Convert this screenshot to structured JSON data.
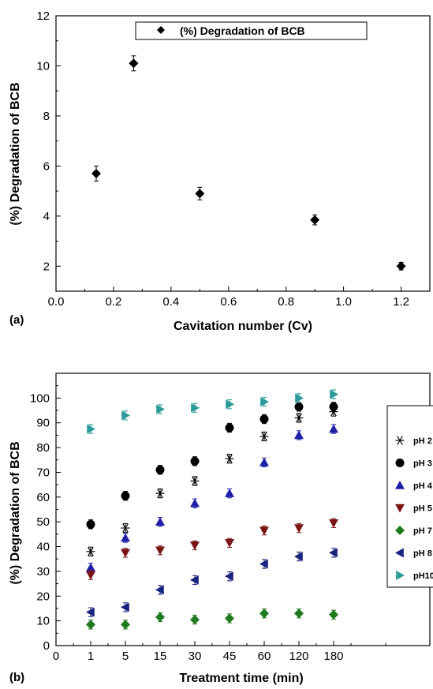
{
  "chart_data": [
    {
      "type": "scatter",
      "panel_label": "(a)",
      "xlabel": "Cavitation number (Cv)",
      "ylabel": "(%) Degradation of BCB",
      "xlim": [
        0.0,
        1.3
      ],
      "ylim": [
        1,
        12
      ],
      "xticks": [
        "0.0",
        "0.2",
        "0.4",
        "0.6",
        "0.8",
        "1.0",
        "1.2"
      ],
      "yticks": [
        "2",
        "4",
        "6",
        "8",
        "10",
        "12"
      ],
      "legend_position": "top-center",
      "series": [
        {
          "name": "(%) Degradation of BCB",
          "marker": "diamond",
          "color": "#000000",
          "x": [
            0.14,
            0.27,
            0.5,
            0.9,
            1.2
          ],
          "y": [
            5.7,
            10.1,
            4.9,
            3.85,
            2.0
          ],
          "err": [
            0.3,
            0.3,
            0.25,
            0.2,
            0.15
          ]
        }
      ]
    },
    {
      "type": "scatter",
      "panel_label": "(b)",
      "xlabel": "Treatment  time (min)",
      "ylabel": "(%) Degradation of BCB",
      "categories": [
        "0",
        "1",
        "5",
        "15",
        "30",
        "45",
        "60",
        "120",
        "180"
      ],
      "ylim": [
        0,
        110
      ],
      "yticks": [
        "0",
        "10",
        "20",
        "30",
        "40",
        "50",
        "60",
        "70",
        "80",
        "90",
        "100"
      ],
      "legend_position": "right",
      "series": [
        {
          "name": "pH 2",
          "marker": "asterisk",
          "color": "#000000",
          "values": [
            null,
            38,
            47.5,
            61.5,
            66.5,
            75.5,
            84.5,
            92,
            94.5
          ]
        },
        {
          "name": "pH 3",
          "marker": "circle",
          "color": "#000000",
          "values": [
            null,
            49,
            60.5,
            71,
            74.5,
            88,
            91.5,
            96.5,
            96.5
          ]
        },
        {
          "name": "pH 4",
          "marker": "triangle-up",
          "color": "#1f1fa8",
          "values": [
            null,
            31.5,
            43.5,
            50,
            57.5,
            61.5,
            74,
            85,
            87.5
          ]
        },
        {
          "name": "pH 5",
          "marker": "triangle-down",
          "color": "#7a1414",
          "values": [
            null,
            28.5,
            37.5,
            38.5,
            40.5,
            41.5,
            46.5,
            47.5,
            49.5
          ]
        },
        {
          "name": "pH 7",
          "marker": "diamond",
          "color": "#1f7a1f",
          "values": [
            null,
            8.5,
            8.5,
            11.5,
            10.5,
            11,
            13,
            13,
            12.5
          ]
        },
        {
          "name": "pH 8",
          "marker": "triangle-left",
          "color": "#1a237e",
          "values": [
            null,
            13.5,
            15.5,
            22.5,
            26.5,
            28,
            33,
            36,
            37.5
          ]
        },
        {
          "name": "pH10",
          "marker": "triangle-right",
          "color": "#2a9a9a",
          "values": [
            null,
            87.5,
            93,
            95.5,
            96,
            97.5,
            98.5,
            100,
            101.5
          ]
        }
      ]
    }
  ]
}
